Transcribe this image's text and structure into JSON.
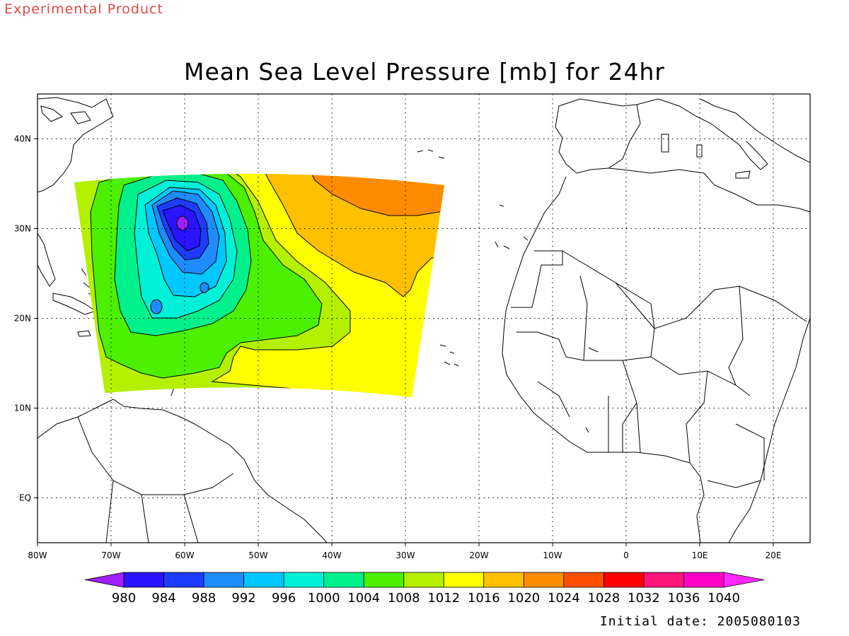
{
  "header": {
    "banner": "Experimental Product",
    "title": "Mean Sea Level Pressure [mb] for 24hr",
    "initial_date": "Initial date: 2005080103"
  },
  "map": {
    "lon_range": [
      -80,
      25
    ],
    "lat_range": [
      -5,
      45
    ],
    "lon_ticks": [
      {
        "value": -80,
        "label": "80W"
      },
      {
        "value": -70,
        "label": "70W"
      },
      {
        "value": -60,
        "label": "60W"
      },
      {
        "value": -50,
        "label": "50W"
      },
      {
        "value": -40,
        "label": "40W"
      },
      {
        "value": -30,
        "label": "30W"
      },
      {
        "value": -20,
        "label": "20W"
      },
      {
        "value": -10,
        "label": "10W"
      },
      {
        "value": 0,
        "label": "0"
      },
      {
        "value": 10,
        "label": "10E"
      },
      {
        "value": 20,
        "label": "20E"
      }
    ],
    "lat_ticks": [
      {
        "value": 40,
        "label": "40N"
      },
      {
        "value": 30,
        "label": "30N"
      },
      {
        "value": 20,
        "label": "20N"
      },
      {
        "value": 10,
        "label": "10N"
      },
      {
        "value": 0,
        "label": "EQ"
      }
    ],
    "grid": "dotted"
  },
  "pressure_field": {
    "variable": "Mean sea level pressure",
    "units": "mb",
    "low_center": {
      "lon": -60,
      "lat": 31,
      "value": 980
    }
  },
  "colorbar": {
    "levels": [
      980,
      984,
      988,
      992,
      996,
      1000,
      1004,
      1008,
      1012,
      1016,
      1020,
      1024,
      1028,
      1032,
      1036,
      1040
    ],
    "colors": [
      "#a020ff",
      "#2814ff",
      "#1e3cff",
      "#1e8cff",
      "#00c8ff",
      "#00f0d8",
      "#00f08c",
      "#4cf000",
      "#b4f000",
      "#ffff00",
      "#ffc000",
      "#ff8c00",
      "#ff5000",
      "#ff0000",
      "#ff1478",
      "#ff00c8",
      "#ff28ff"
    ]
  }
}
